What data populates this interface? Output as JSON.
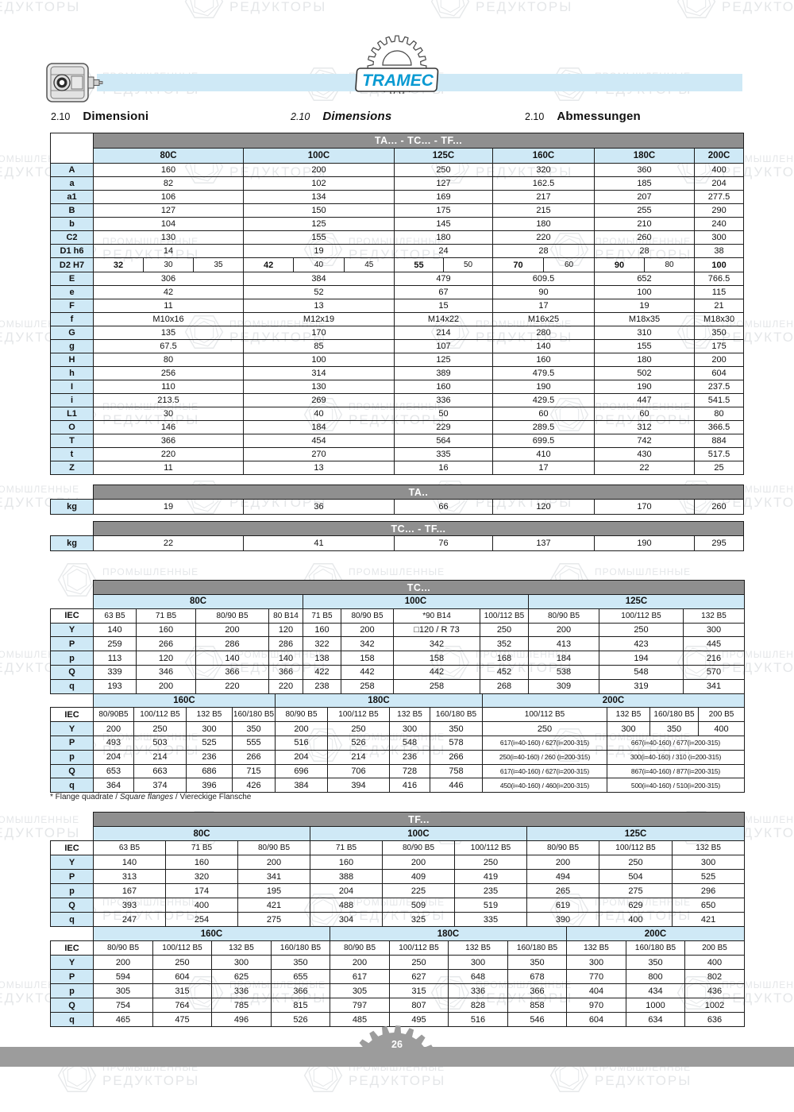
{
  "logo": {
    "text": "TRAMEC"
  },
  "watermark": {
    "line1": "ПРОМЫШЛЕННЫЕ",
    "line2": "РЕДУКТОРЫ"
  },
  "headings": [
    {
      "num": "2.10",
      "title": "Dimensioni"
    },
    {
      "num": "2.10",
      "title": "Dimensions"
    },
    {
      "num": "2.10",
      "title": "Abmessungen"
    }
  ],
  "dim_table": {
    "title": "TA... - TC... - TF...",
    "columns": [
      "80C",
      "100C",
      "125C",
      "160C",
      "180C",
      "200C"
    ],
    "rows": [
      {
        "label": "A",
        "values": [
          "160",
          "200",
          "250",
          "320",
          "360",
          "400"
        ]
      },
      {
        "label": "a",
        "values": [
          "82",
          "102",
          "127",
          "162.5",
          "185",
          "204"
        ]
      },
      {
        "label": "a1",
        "values": [
          "106",
          "134",
          "169",
          "217",
          "207",
          "277.5"
        ]
      },
      {
        "label": "B",
        "values": [
          "127",
          "150",
          "175",
          "215",
          "255",
          "290"
        ]
      },
      {
        "label": "b",
        "values": [
          "104",
          "125",
          "145",
          "180",
          "210",
          "240"
        ]
      },
      {
        "label": "C2",
        "values": [
          "130",
          "155",
          "180",
          "220",
          "260",
          "300"
        ]
      },
      {
        "label": "D1 h6",
        "values": [
          "14",
          "19",
          "24",
          "28",
          "28",
          "38"
        ]
      },
      {
        "label": "D2 H7",
        "split": true,
        "values": [
          [
            "32",
            "30",
            "35"
          ],
          [
            "42",
            "40",
            "45"
          ],
          [
            "55",
            "50"
          ],
          [
            "70",
            "60"
          ],
          [
            "90",
            "80"
          ],
          [
            "100"
          ]
        ]
      },
      {
        "label": "E",
        "values": [
          "306",
          "384",
          "479",
          "609.5",
          "652",
          "766.5"
        ]
      },
      {
        "label": "e",
        "values": [
          "42",
          "52",
          "67",
          "90",
          "100",
          "115"
        ]
      },
      {
        "label": "F",
        "values": [
          "11",
          "13",
          "15",
          "17",
          "19",
          "21"
        ]
      },
      {
        "label": "f",
        "values": [
          "M10x16",
          "M12x19",
          "M14x22",
          "M16x25",
          "M18x35",
          "M18x30"
        ]
      },
      {
        "label": "G",
        "values": [
          "135",
          "170",
          "214",
          "280",
          "310",
          "350"
        ]
      },
      {
        "label": "g",
        "values": [
          "67.5",
          "85",
          "107",
          "140",
          "155",
          "175"
        ]
      },
      {
        "label": "H",
        "values": [
          "80",
          "100",
          "125",
          "160",
          "180",
          "200"
        ]
      },
      {
        "label": "h",
        "values": [
          "256",
          "314",
          "389",
          "479.5",
          "502",
          "604"
        ]
      },
      {
        "label": "I",
        "values": [
          "110",
          "130",
          "160",
          "190",
          "190",
          "237.5"
        ]
      },
      {
        "label": "i",
        "values": [
          "213.5",
          "269",
          "336",
          "429.5",
          "447",
          "541.5"
        ]
      },
      {
        "label": "L1",
        "values": [
          "30",
          "40",
          "50",
          "60",
          "60",
          "80"
        ]
      },
      {
        "label": "O",
        "values": [
          "146",
          "184",
          "229",
          "289.5",
          "312",
          "366.5"
        ]
      },
      {
        "label": "T",
        "values": [
          "366",
          "454",
          "564",
          "699.5",
          "742",
          "884"
        ]
      },
      {
        "label": "t",
        "values": [
          "220",
          "270",
          "335",
          "410",
          "430",
          "517.5"
        ]
      },
      {
        "label": "Z",
        "values": [
          "11",
          "13",
          "16",
          "17",
          "22",
          "25"
        ]
      }
    ]
  },
  "ta_kg": {
    "title": "TA..",
    "label": "kg",
    "values": [
      "19",
      "36",
      "66",
      "120",
      "170",
      "260"
    ]
  },
  "tctf_kg": {
    "title": "TC... - TF...",
    "label": "kg",
    "values": [
      "22",
      "41",
      "76",
      "137",
      "190",
      "295"
    ]
  },
  "tc_table": {
    "title": "TC...",
    "blocks": [
      {
        "iec_label": "IEC",
        "groups": [
          {
            "label": "80C",
            "span": 4
          },
          {
            "label": "100C",
            "span": 4
          },
          {
            "label": "125C",
            "span": 3
          }
        ],
        "iec": [
          "63 B5",
          "71 B5",
          "80/90 B5",
          "80 B14",
          "71 B5",
          "80/90 B5",
          "*90 B14",
          "100/112 B5",
          "80/90 B5",
          "100/112 B5",
          "132 B5"
        ],
        "rows": [
          {
            "label": "Y",
            "values": [
              "140",
              "160",
              "200",
              "120",
              "160",
              "200",
              "□120 / R 73",
              "250",
              "200",
              "250",
              "300"
            ]
          },
          {
            "label": "P",
            "values": [
              "259",
              "266",
              "286",
              "286",
              "322",
              "342",
              "342",
              "352",
              "413",
              "423",
              "445"
            ]
          },
          {
            "label": "p",
            "values": [
              "113",
              "120",
              "140",
              "140",
              "138",
              "158",
              "158",
              "168",
              "184",
              "194",
              "216"
            ]
          },
          {
            "label": "Q",
            "values": [
              "339",
              "346",
              "366",
              "366",
              "422",
              "442",
              "442",
              "452",
              "538",
              "548",
              "570"
            ]
          },
          {
            "label": "q",
            "values": [
              "193",
              "200",
              "220",
              "220",
              "238",
              "258",
              "258",
              "268",
              "309",
              "319",
              "341"
            ]
          }
        ]
      },
      {
        "iec_label": "IEC",
        "groups": [
          {
            "label": "160C",
            "span": 4
          },
          {
            "label": "180C",
            "span": 4
          },
          {
            "label": "200C",
            "span": 4
          }
        ],
        "iec": [
          "80/90B5",
          "100/112 B5",
          "132 B5",
          "160/180 B5",
          "80/90 B5",
          "100/112 B5",
          "132 B5",
          "160/180 B5",
          "100/112 B5",
          "132 B5",
          "160/180 B5",
          "200 B5"
        ],
        "rows": [
          {
            "label": "Y",
            "values": [
              "200",
              "250",
              "300",
              "350",
              "200",
              "250",
              "300",
              "350",
              "250",
              "300",
              "350",
              "400"
            ]
          },
          {
            "label": "P",
            "values": [
              "493",
              "503",
              "525",
              "555",
              "516",
              "526",
              "548",
              "578",
              {
                "t": "617(i=40-160) / 627(i=200-315)",
                "span": 1,
                "small": true
              },
              {
                "t": "667(i=40-160) / 677(i=200-315)",
                "span": 3,
                "small": true
              }
            ]
          },
          {
            "label": "p",
            "values": [
              "204",
              "214",
              "236",
              "266",
              "204",
              "214",
              "236",
              "266",
              {
                "t": "250(i=40-160) / 260 (i=200-315)",
                "span": 1,
                "small": true
              },
              {
                "t": "300(i=40-160) / 310 (i=200-315)",
                "span": 3,
                "small": true
              }
            ]
          },
          {
            "label": "Q",
            "values": [
              "653",
              "663",
              "686",
              "715",
              "696",
              "706",
              "728",
              "758",
              {
                "t": "617(i=40-160) / 627(i=200-315)",
                "span": 1,
                "small": true
              },
              {
                "t": "867(i=40-160) / 877(i=200-315)",
                "span": 3,
                "small": true
              }
            ]
          },
          {
            "label": "q",
            "values": [
              "364",
              "374",
              "396",
              "426",
              "384",
              "394",
              "416",
              "446",
              {
                "t": "450(i=40-160) / 460(i=200-315)",
                "span": 1,
                "small": true
              },
              {
                "t": "500(i=40-160) / 510(i=200-315)",
                "span": 3,
                "small": true
              }
            ]
          }
        ]
      }
    ]
  },
  "footnote": {
    "parts": [
      "* Flange quadrate / ",
      "Square flanges",
      " / Viereckige Flansche"
    ]
  },
  "tf_table": {
    "title": "TF...",
    "blocks": [
      {
        "iec_label": "IEC",
        "groups": [
          {
            "label": "80C",
            "span": 3
          },
          {
            "label": "100C",
            "span": 3
          },
          {
            "label": "125C",
            "span": 3
          }
        ],
        "iec": [
          "63 B5",
          "71 B5",
          "80/90 B5",
          "71 B5",
          "80/90 B5",
          "100/112 B5",
          "80/90 B5",
          "100/112 B5",
          "132 B5"
        ],
        "rows": [
          {
            "label": "Y",
            "values": [
              "140",
              "160",
              "200",
              "160",
              "200",
              "250",
              "200",
              "250",
              "300"
            ]
          },
          {
            "label": "P",
            "values": [
              "313",
              "320",
              "341",
              "388",
              "409",
              "419",
              "494",
              "504",
              "525"
            ]
          },
          {
            "label": "p",
            "values": [
              "167",
              "174",
              "195",
              "204",
              "225",
              "235",
              "265",
              "275",
              "296"
            ]
          },
          {
            "label": "Q",
            "values": [
              "393",
              "400",
              "421",
              "488",
              "509",
              "519",
              "619",
              "629",
              "650"
            ]
          },
          {
            "label": "q",
            "values": [
              "247",
              "254",
              "275",
              "304",
              "325",
              "335",
              "390",
              "400",
              "421"
            ]
          }
        ]
      },
      {
        "iec_label": "IEC",
        "groups": [
          {
            "label": "160C",
            "span": 4
          },
          {
            "label": "180C",
            "span": 4
          },
          {
            "label": "200C",
            "span": 3
          }
        ],
        "iec": [
          "80/90 B5",
          "100/112 B5",
          "132 B5",
          "160/180 B5",
          "80/90 B5",
          "100/112 B5",
          "132 B5",
          "160/180 B5",
          "132 B5",
          "160/180 B5",
          "200 B5"
        ],
        "rows": [
          {
            "label": "Y",
            "values": [
              "200",
              "250",
              "300",
              "350",
              "200",
              "250",
              "300",
              "350",
              "300",
              "350",
              "400"
            ]
          },
          {
            "label": "P",
            "values": [
              "594",
              "604",
              "625",
              "655",
              "617",
              "627",
              "648",
              "678",
              "770",
              "800",
              "802"
            ]
          },
          {
            "label": "p",
            "values": [
              "305",
              "315",
              "336",
              "366",
              "305",
              "315",
              "336",
              "366",
              "404",
              "434",
              "436"
            ]
          },
          {
            "label": "Q",
            "values": [
              "754",
              "764",
              "785",
              "815",
              "797",
              "807",
              "828",
              "858",
              "970",
              "1000",
              "1002"
            ]
          },
          {
            "label": "q",
            "values": [
              "465",
              "475",
              "496",
              "526",
              "485",
              "495",
              "516",
              "546",
              "604",
              "634",
              "636"
            ]
          }
        ]
      }
    ]
  },
  "page": {
    "number": "26"
  }
}
